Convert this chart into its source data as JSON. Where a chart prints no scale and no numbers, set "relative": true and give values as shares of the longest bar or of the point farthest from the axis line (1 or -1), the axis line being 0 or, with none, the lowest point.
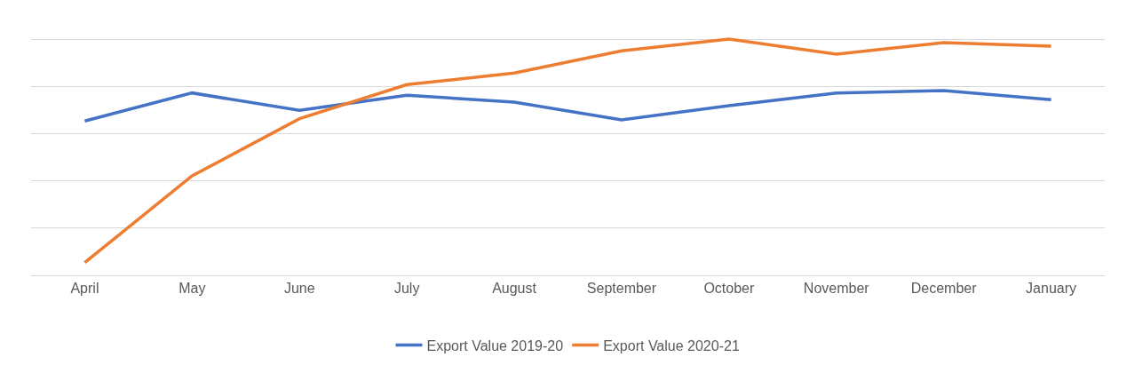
{
  "chart_data": {
    "type": "line",
    "relative": true,
    "grid": "y",
    "legend": "bottom",
    "marker": "none",
    "line_style": "solid",
    "categories": [
      "April",
      "May",
      "June",
      "July",
      "August",
      "September",
      "October",
      "November",
      "December",
      "January"
    ],
    "series": [
      {
        "name": "Export Value 2019-20",
        "color": "#4472c4",
        "values": [
          0.653,
          0.772,
          0.698,
          0.762,
          0.733,
          0.658,
          0.718,
          0.772,
          0.782,
          0.743
        ]
      },
      {
        "name": "Export Value 2020-21",
        "color": "#ed7d31",
        "values": [
          0.054,
          0.421,
          0.663,
          0.807,
          0.856,
          0.95,
          1.0,
          0.936,
          0.985,
          0.97
        ]
      }
    ]
  }
}
